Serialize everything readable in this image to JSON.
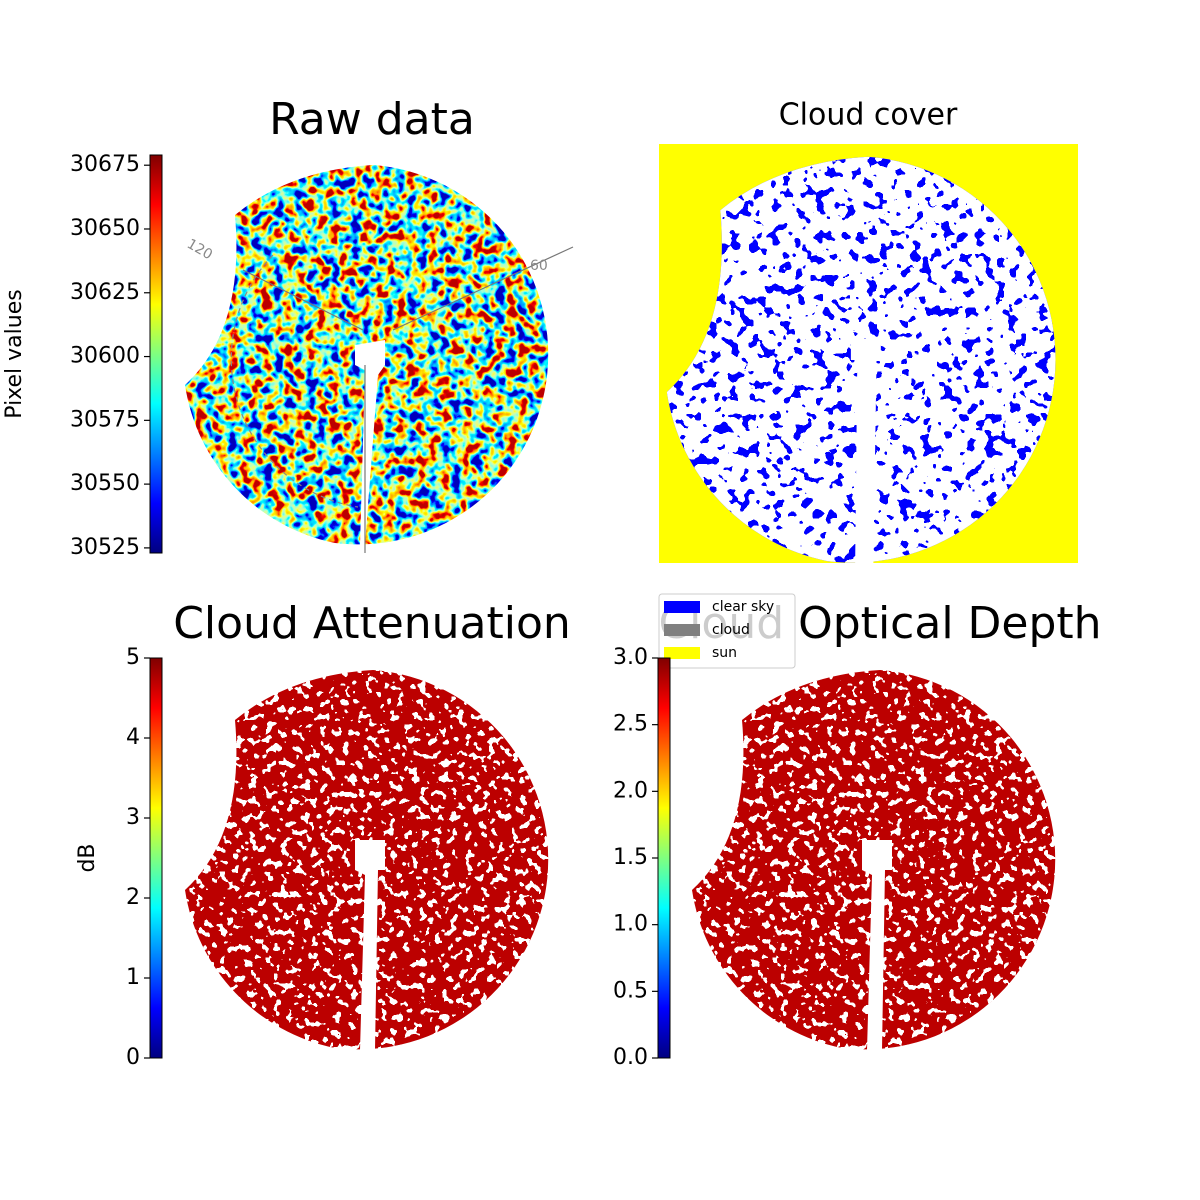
{
  "panels": [
    {
      "title": "Raw data",
      "colorbar": {
        "label": "Pixel values",
        "lim": [
          30523,
          30679
        ],
        "ticks": [
          30525,
          30550,
          30575,
          30600,
          30625,
          30650,
          30675
        ],
        "colormap": "jet"
      },
      "annotations": [
        "120",
        "60"
      ]
    },
    {
      "title": "Cloud cover",
      "legend": [
        {
          "name": "clear sky",
          "color": "#0000ff"
        },
        {
          "name": "cloud",
          "color": "#808080"
        },
        {
          "name": "sun",
          "color": "#ffff00"
        }
      ]
    },
    {
      "title": "Cloud Attenuation",
      "colorbar": {
        "label": "dB",
        "lim": [
          0,
          5
        ],
        "ticks": [
          0,
          1,
          2,
          3,
          4,
          5
        ],
        "colormap": "jet"
      }
    },
    {
      "title": "Cloud Optical Depth",
      "colorbar": {
        "lim": [
          0,
          3
        ],
        "ticks": [
          {
            "value": 0,
            "label": "0.0"
          },
          0.5,
          {
            "value": 1,
            "label": "1.0"
          },
          1.5,
          {
            "value": 2,
            "label": "2.0"
          },
          2.5,
          {
            "value": 3,
            "label": "3.0"
          }
        ],
        "colormap": "jet"
      }
    }
  ]
}
